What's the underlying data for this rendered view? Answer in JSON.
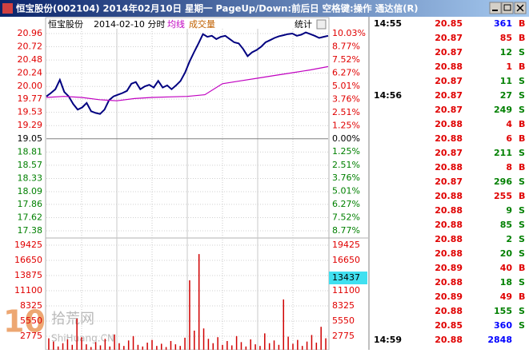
{
  "window": {
    "title": "恒宝股份(002104) 2014年02月10日 星期一 PageUp/Down:前后日 空格键:操作 通达信(R)"
  },
  "chart_header": {
    "name": "恒宝股份",
    "date": "2014-02-10 分时",
    "avg_label": "均线",
    "volume_label": "成交量",
    "stats": "统计"
  },
  "price_chart": {
    "type": "line",
    "ylim": [
      17.38,
      20.96
    ],
    "yticks": [
      20.96,
      20.72,
      20.48,
      20.24,
      {
        "value": 20,
        "label": "20.00"
      },
      19.77,
      19.53,
      19.29,
      19.05,
      18.81,
      18.57,
      18.33,
      18.09,
      17.86,
      17.62,
      17.38
    ],
    "y2lim": [
      -8.77,
      10.03
    ],
    "y2ticks": [
      {
        "value": 10.03,
        "label": "10.03%"
      },
      {
        "value": 8.77,
        "label": "8.77%"
      },
      {
        "value": 7.52,
        "label": "7.52%"
      },
      {
        "value": 6.27,
        "label": "6.27%"
      },
      {
        "value": 5.01,
        "label": "5.01%"
      },
      {
        "value": 3.76,
        "label": "3.76%"
      },
      {
        "value": 2.51,
        "label": "2.51%"
      },
      {
        "value": 1.25,
        "label": "1.25%"
      },
      {
        "value": 0,
        "label": "0.00%"
      },
      {
        "value": -1.25,
        "label": "1.25%"
      },
      {
        "value": -2.51,
        "label": "2.51%"
      },
      {
        "value": -3.76,
        "label": "3.76%"
      },
      {
        "value": -5.01,
        "label": "5.01%"
      },
      {
        "value": -6.27,
        "label": "6.27%"
      },
      {
        "value": -7.52,
        "label": "7.52%"
      },
      {
        "value": -8.77,
        "label": "8.77%"
      }
    ],
    "series": [
      {
        "name": "价格",
        "color": "#000080",
        "values": [
          19.82,
          19.88,
          19.95,
          20.12,
          19.9,
          19.82,
          19.68,
          19.58,
          19.62,
          19.7,
          19.55,
          19.52,
          19.5,
          19.58,
          19.75,
          19.82,
          19.85,
          19.88,
          19.92,
          20.05,
          20.08,
          19.95,
          20.0,
          20.03,
          19.98,
          20.1,
          19.98,
          20.02,
          19.95,
          20.02,
          20.1,
          20.25,
          20.45,
          20.62,
          20.78,
          20.95,
          20.9,
          20.92,
          20.86,
          20.9,
          20.92,
          20.86,
          20.8,
          20.78,
          20.68,
          20.55,
          20.62,
          20.66,
          20.72,
          20.8,
          20.84,
          20.88,
          20.91,
          20.93,
          20.95,
          20.96,
          20.92,
          20.94,
          20.98,
          20.95,
          20.92,
          20.88,
          20.9,
          20.92
        ]
      },
      {
        "name": "均线",
        "color": "#c000c0",
        "values": [
          19.8,
          19.82,
          19.8,
          19.76,
          19.74,
          19.78,
          19.8,
          19.81,
          19.82,
          19.85,
          20.05,
          20.1,
          20.15,
          20.2,
          20.25,
          20.3,
          20.36
        ]
      }
    ]
  },
  "volume_chart": {
    "type": "bar",
    "color": "#d00000",
    "ylim": [
      0,
      20447
    ],
    "yticks": [
      19425,
      16650,
      13875,
      11100,
      8325,
      5550,
      2775
    ],
    "cursor_value": 13437,
    "values": [
      2400,
      1800,
      900,
      1500,
      2200,
      1200,
      6000,
      2600,
      1300,
      800,
      1700,
      1100,
      2300,
      900,
      3100,
      1500,
      1000,
      2000,
      2800,
      1200,
      900,
      1600,
      2100,
      1000,
      1400,
      800,
      1900,
      1300,
      1000,
      2500,
      13000,
      3800,
      17800,
      4200,
      2300,
      1500,
      2600,
      1200,
      1900,
      1100,
      2800,
      1700,
      900,
      2200,
      1300,
      1000,
      3300,
      1500,
      2000,
      1200,
      9500,
      2700,
      1400,
      2100,
      1000,
      1800,
      3000,
      1600,
      4500,
      2400
    ]
  },
  "watermark": {
    "logo": "10",
    "name": "拾荒网",
    "site": "ShiHuang.CN"
  },
  "trade_colors": {
    "price": "#e00000",
    "B": "#e00000",
    "S": "#008000"
  },
  "trades": [
    {
      "time": "14:55",
      "price": 20.85,
      "volume": 361,
      "side": "B",
      "volume_color": "#0000ff"
    },
    {
      "price": 20.87,
      "volume": 85,
      "side": "B"
    },
    {
      "price": 20.87,
      "volume": 12,
      "side": "S"
    },
    {
      "price": 20.88,
      "volume": 1,
      "side": "B"
    },
    {
      "price": 20.87,
      "volume": 11,
      "side": "S"
    },
    {
      "time": "14:56",
      "price": 20.87,
      "volume": 27,
      "side": "S"
    },
    {
      "price": 20.87,
      "volume": 249,
      "side": "S"
    },
    {
      "price": 20.88,
      "volume": 4,
      "side": "B"
    },
    {
      "price": 20.88,
      "volume": 6,
      "side": "B"
    },
    {
      "price": 20.87,
      "volume": 211,
      "side": "S"
    },
    {
      "price": 20.88,
      "volume": 8,
      "side": "B"
    },
    {
      "price": 20.87,
      "volume": 296,
      "side": "S"
    },
    {
      "price": 20.88,
      "volume": 255,
      "side": "B"
    },
    {
      "price": 20.88,
      "volume": 9,
      "side": "S"
    },
    {
      "price": 20.88,
      "volume": 85,
      "side": "S"
    },
    {
      "price": 20.88,
      "volume": 2,
      "side": "S"
    },
    {
      "price": 20.88,
      "volume": 20,
      "side": "S"
    },
    {
      "price": 20.89,
      "volume": 40,
      "side": "B"
    },
    {
      "price": 20.88,
      "volume": 18,
      "side": "S"
    },
    {
      "price": 20.89,
      "volume": 49,
      "side": "B"
    },
    {
      "price": 20.88,
      "volume": 155,
      "side": "S"
    },
    {
      "price": 20.85,
      "volume": 360,
      "side": "S",
      "volume_color": "#0000ff"
    },
    {
      "time": "14:59",
      "price": 20.88,
      "volume": 2848,
      "volume_color": "#0000ff"
    }
  ]
}
